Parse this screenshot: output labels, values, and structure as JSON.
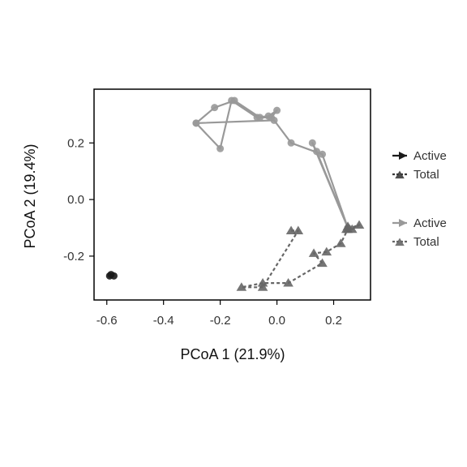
{
  "chart_data": {
    "type": "scatter",
    "xlabel": "PCoA 1 (21.9%)",
    "ylabel": "PCoA 2 (19.4%)",
    "xlim": [
      -0.645,
      0.33
    ],
    "ylim": [
      -0.355,
      0.39
    ],
    "x_ticks": [
      -0.6,
      -0.4,
      -0.2,
      0.0,
      0.2
    ],
    "x_tick_labels": [
      "-0.6",
      "-0.4",
      "-0.2",
      "0.0",
      "0.2"
    ],
    "y_ticks": [
      -0.2,
      0.0,
      0.2
    ],
    "y_tick_labels": [
      "-0.2",
      "0.0",
      "0.2"
    ],
    "grid": false,
    "legend_position": "right",
    "series": [
      {
        "name": "Active",
        "group": 1,
        "color": "#1a1a1a",
        "marker": "circle",
        "line": "solid",
        "points": [
          [
            -0.59,
            -0.27
          ],
          [
            -0.585,
            -0.265
          ],
          [
            -0.575,
            -0.27
          ]
        ]
      },
      {
        "name": "Total",
        "group": 1,
        "color": "#3a3a3a",
        "marker": "triangle",
        "line": "dashed",
        "points": []
      },
      {
        "name": "Active",
        "group": 2,
        "color": "#999999",
        "marker": "circle",
        "line": "solid",
        "points": [
          [
            -0.285,
            0.27
          ],
          [
            -0.22,
            0.325
          ],
          [
            -0.15,
            0.35
          ],
          [
            -0.06,
            0.29
          ],
          [
            -0.02,
            0.29
          ],
          [
            0.0,
            0.315
          ],
          [
            -0.03,
            0.295
          ],
          [
            -0.07,
            0.29
          ],
          [
            -0.16,
            0.35
          ],
          [
            -0.2,
            0.18
          ],
          [
            -0.285,
            0.27
          ],
          [
            -0.01,
            0.28
          ],
          [
            0.05,
            0.2
          ],
          [
            0.16,
            0.16
          ],
          [
            0.25,
            -0.1
          ],
          [
            0.14,
            0.17
          ],
          [
            0.125,
            0.2
          ],
          [
            0.25,
            -0.1
          ]
        ]
      },
      {
        "name": "Total",
        "group": 2,
        "color": "#666666",
        "marker": "triangle",
        "line": "dashed",
        "points": [
          [
            0.05,
            -0.11
          ],
          [
            0.075,
            -0.11
          ],
          [
            -0.05,
            -0.31
          ],
          [
            -0.125,
            -0.31
          ],
          [
            -0.05,
            -0.295
          ],
          [
            0.04,
            -0.295
          ],
          [
            0.16,
            -0.225
          ],
          [
            0.13,
            -0.19
          ],
          [
            0.175,
            -0.185
          ],
          [
            0.225,
            -0.155
          ],
          [
            0.25,
            -0.105
          ],
          [
            0.265,
            -0.105
          ],
          [
            0.29,
            -0.09
          ],
          [
            0.245,
            -0.105
          ],
          [
            0.25,
            -0.095
          ]
        ]
      }
    ]
  }
}
